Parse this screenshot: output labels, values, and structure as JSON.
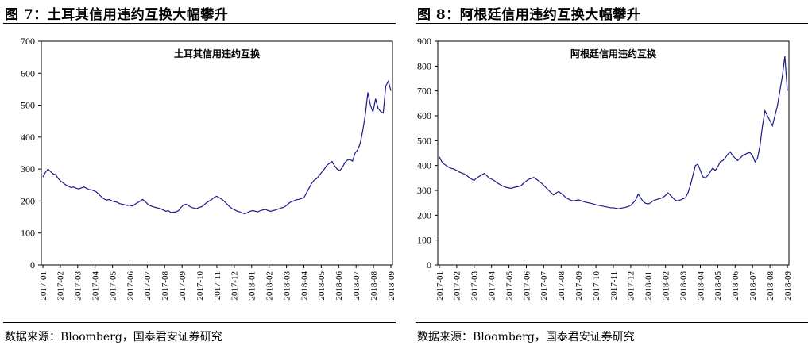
{
  "charts": [
    {
      "figure_title": "图 7：土耳其信用违约互换大幅攀升",
      "source": "数据来源：Bloomberg，国泰君安证券研究",
      "chart_data": {
        "type": "line",
        "title": "土耳其信用违约互换",
        "xlabel": "",
        "ylabel": "",
        "ylim": [
          0,
          700
        ],
        "yticks": [
          0,
          100,
          200,
          300,
          400,
          500,
          600,
          700
        ],
        "xticks": [
          "2017-01",
          "2017-02",
          "2017-03",
          "2017-04",
          "2017-05",
          "2017-06",
          "2017-07",
          "2017-08",
          "2017-09",
          "2017-10",
          "2017-11",
          "2017-12",
          "2018-01",
          "2018-02",
          "2018-03",
          "2018-04",
          "2018-05",
          "2018-06",
          "2018-07",
          "2018-08",
          "2018-09"
        ],
        "grid": false,
        "color": "#1a1a8c",
        "series": [
          {
            "values": [
              275,
              290,
              300,
              292,
              285,
              282,
              270,
              262,
              256,
              250,
              246,
              242,
              244,
              240,
              238,
              241,
              244,
              240,
              236,
              235,
              232,
              228,
              220,
              212,
              206,
              203,
              205,
              200,
              198,
              196,
              192,
              190,
              188,
              186,
              187,
              184,
              190,
              195,
              200,
              205,
              198,
              190,
              185,
              182,
              180,
              178,
              176,
              172,
              168,
              170,
              164,
              165,
              166,
              170,
              180,
              188,
              190,
              185,
              180,
              178,
              176,
              180,
              182,
              188,
              195,
              200,
              205,
              212,
              215,
              210,
              205,
              198,
              190,
              182,
              176,
              172,
              168,
              166,
              162,
              160,
              164,
              168,
              170,
              168,
              166,
              170,
              172,
              174,
              170,
              168,
              170,
              172,
              175,
              178,
              180,
              185,
              192,
              198,
              200,
              204,
              205,
              208,
              210,
              225,
              240,
              255,
              265,
              270,
              280,
              290,
              300,
              312,
              318,
              324,
              310,
              300,
              295,
              305,
              320,
              328,
              330,
              325,
              350,
              360,
              380,
              420,
              470,
              540,
              500,
              478,
              520,
              490,
              480,
              475,
              560,
              575,
              545
            ]
          }
        ]
      }
    },
    {
      "figure_title": "图 8：阿根廷信用违约互换大幅攀升",
      "source": "数据来源：Bloomberg，国泰君安证券研究",
      "chart_data": {
        "type": "line",
        "title": "阿根廷信用违约互换",
        "xlabel": "",
        "ylabel": "",
        "ylim": [
          0,
          900
        ],
        "yticks": [
          0,
          100,
          200,
          300,
          400,
          500,
          600,
          700,
          800,
          900
        ],
        "xticks": [
          "2017-01",
          "2017-02",
          "2017-03",
          "2017-04",
          "2017-05",
          "2017-06",
          "2017-07",
          "2017-08",
          "2017-09",
          "2017-10",
          "2017-11",
          "2017-12",
          "2018-01",
          "2018-02",
          "2018-03",
          "2018-04",
          "2018-05",
          "2018-06",
          "2018-07",
          "2018-08",
          "2018-09"
        ],
        "grid": false,
        "color": "#1a1a8c",
        "series": [
          {
            "values": [
              435,
              415,
              405,
              398,
              392,
              388,
              385,
              380,
              374,
              370,
              366,
              360,
              352,
              345,
              340,
              350,
              356,
              362,
              368,
              360,
              350,
              345,
              340,
              332,
              326,
              320,
              315,
              312,
              310,
              308,
              312,
              314,
              316,
              320,
              330,
              338,
              345,
              348,
              352,
              345,
              338,
              330,
              320,
              310,
              300,
              290,
              282,
              290,
              295,
              288,
              280,
              270,
              265,
              260,
              258,
              260,
              262,
              258,
              255,
              252,
              250,
              248,
              245,
              242,
              240,
              238,
              236,
              234,
              232,
              230,
              230,
              228,
              226,
              228,
              230,
              232,
              235,
              240,
              250,
              262,
              285,
              270,
              255,
              248,
              245,
              250,
              258,
              262,
              265,
              268,
              272,
              280,
              290,
              280,
              270,
              260,
              258,
              262,
              266,
              270,
              290,
              320,
              360,
              400,
              405,
              380,
              355,
              350,
              360,
              375,
              390,
              380,
              395,
              415,
              420,
              430,
              445,
              455,
              440,
              430,
              420,
              430,
              440,
              445,
              450,
              452,
              440,
              415,
              430,
              480,
              560,
              620,
              600,
              580,
              560,
              600,
              640,
              700,
              760,
              840,
              700
            ]
          }
        ]
      }
    }
  ]
}
